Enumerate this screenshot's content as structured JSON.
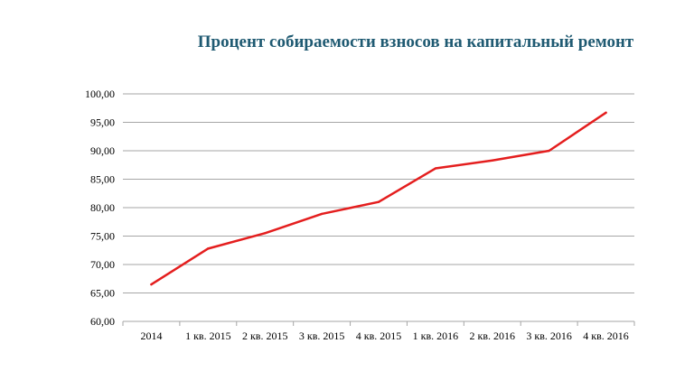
{
  "chart_data": {
    "type": "line",
    "title": "Процент собираемости взносов на капитальный ремонт",
    "xlabel": "",
    "ylabel": "",
    "categories": [
      "2014",
      "1 кв. 2015",
      "2 кв. 2015",
      "3 кв. 2015",
      "4 кв. 2015",
      "1 кв. 2016",
      "2 кв. 2016",
      "3 кв. 2016",
      "4 кв. 2016"
    ],
    "series": [
      {
        "values": [
          66.5,
          72.8,
          75.5,
          78.9,
          81.0,
          86.9,
          88.3,
          90.0,
          96.7
        ],
        "color": "#e41e1e"
      }
    ],
    "ylim": [
      60,
      100
    ],
    "yticks": [
      "60,00",
      "65,00",
      "70,00",
      "75,00",
      "80,00",
      "85,00",
      "90,00",
      "95,00",
      "100,00"
    ],
    "grid": true,
    "legend": "none",
    "gridColor": "#a6a6a6",
    "axisColor": "#a6a6a6",
    "titleColor": "#1f5a72"
  }
}
